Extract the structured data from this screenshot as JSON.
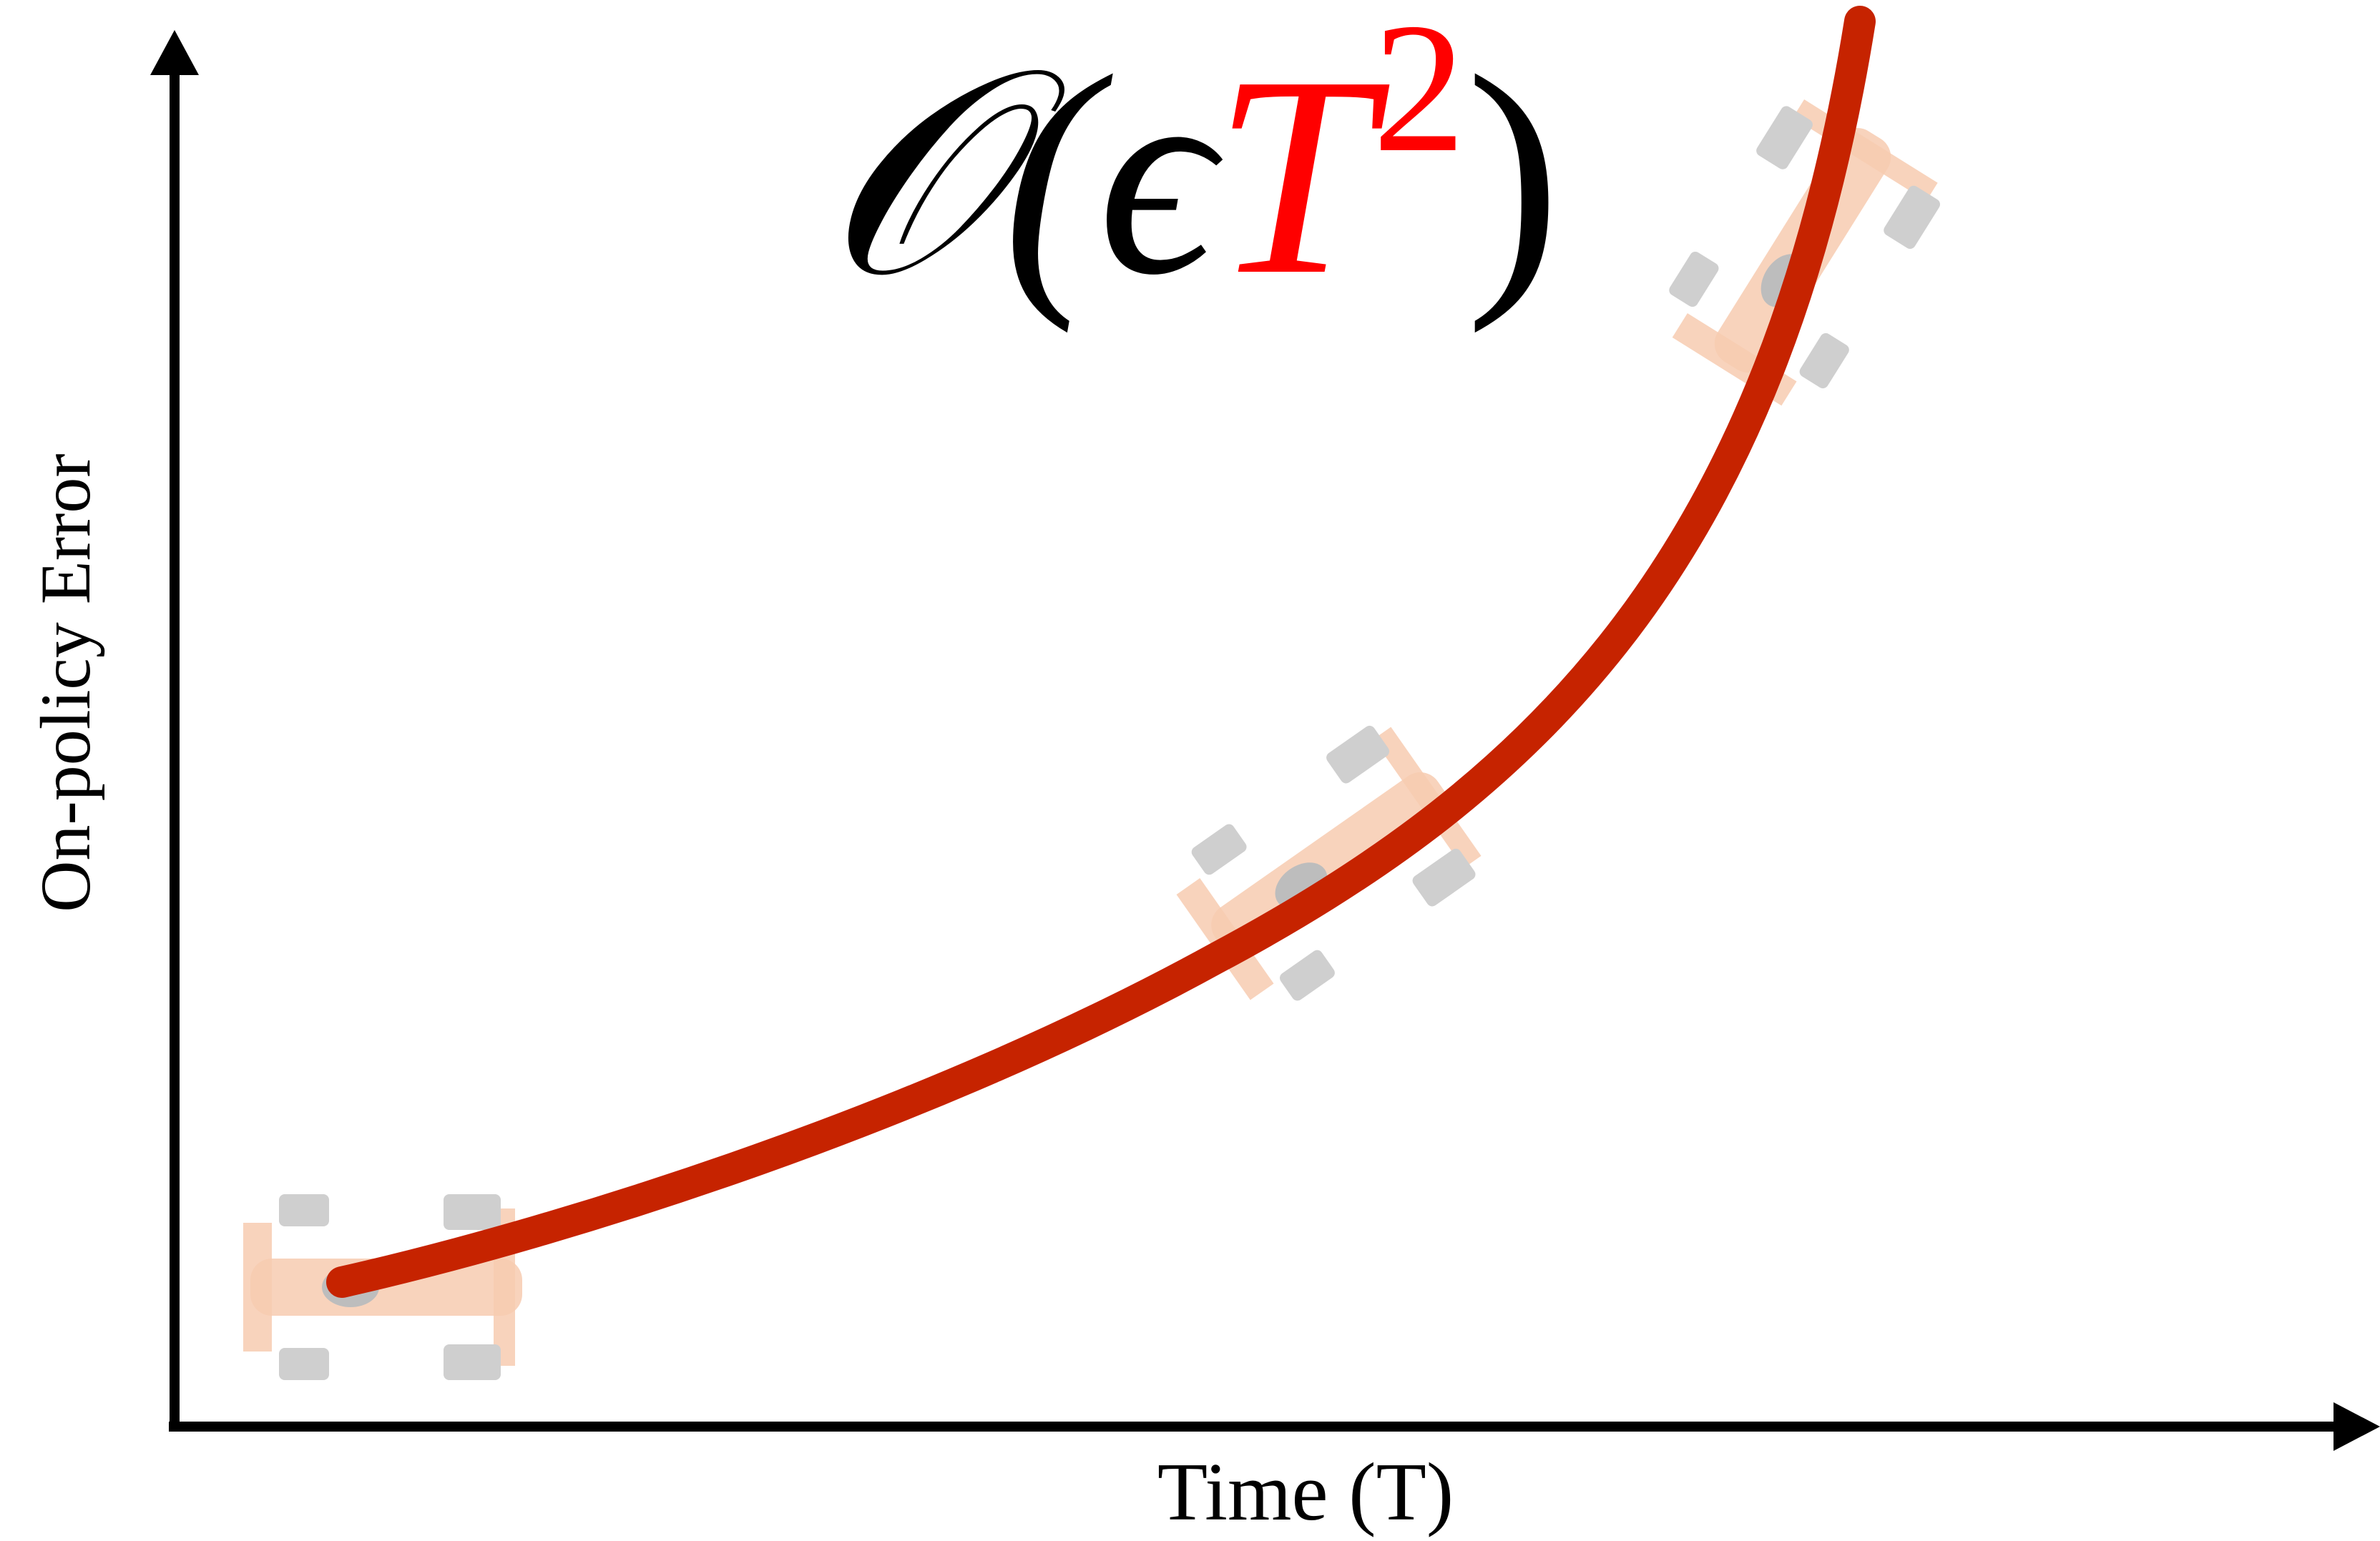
{
  "title": {
    "prefix": "𝒪(ϵ",
    "highlight": "T",
    "exponent": "2",
    "suffix": ")"
  },
  "y_axis_label": "On-policy Error",
  "x_axis_label": "Time (T)"
}
